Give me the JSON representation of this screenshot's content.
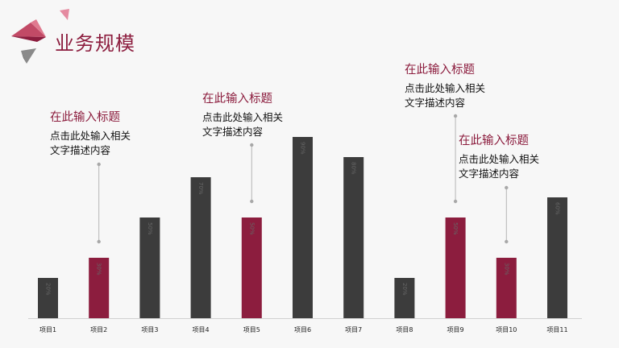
{
  "page": {
    "title": "业务规模"
  },
  "colors": {
    "accent": "#8c1d3e",
    "dark_bar": "#3c3c3c",
    "background": "#f7f7f7"
  },
  "chart_data": {
    "type": "bar",
    "title": "",
    "xlabel": "",
    "ylabel": "",
    "ylim": [
      0,
      100
    ],
    "grid": false,
    "categories": [
      "项目1",
      "项目2",
      "项目3",
      "项目4",
      "项目5",
      "项目6",
      "项目7",
      "项目8",
      "项目9",
      "项目10",
      "项目11"
    ],
    "values": [
      20,
      30,
      50,
      70,
      50,
      90,
      80,
      20,
      50,
      30,
      60
    ],
    "value_labels": [
      "20%",
      "30%",
      "50%",
      "70%",
      "50%",
      "90%",
      "80%",
      "20%",
      "50%",
      "30%",
      "60%"
    ],
    "highlighted": [
      false,
      true,
      false,
      false,
      true,
      false,
      false,
      false,
      true,
      true,
      false
    ]
  },
  "callouts": [
    {
      "title": "在此输入标题",
      "body_line1": "点击此处输入相关",
      "body_line2": "文字描述内容",
      "target_index": 1
    },
    {
      "title": "在此输入标题",
      "body_line1": "点击此处输入相关",
      "body_line2": "文字描述内容",
      "target_index": 4
    },
    {
      "title": "在此输入标题",
      "body_line1": "点击此处输入相关",
      "body_line2": "文字描述内容",
      "target_index": 8
    },
    {
      "title": "在此输入标题",
      "body_line1": "点击此处输入相关",
      "body_line2": "文字描述内容",
      "target_index": 9
    }
  ]
}
